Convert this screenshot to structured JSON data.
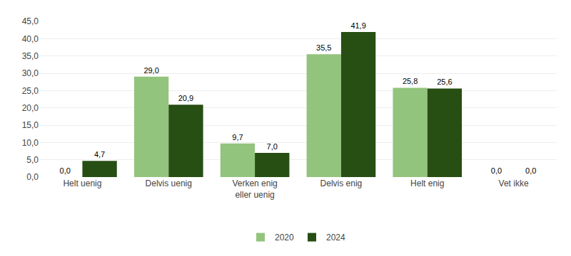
{
  "chart_data": {
    "type": "bar",
    "categories": [
      "Helt uenig",
      "Delvis uenig",
      "Verken enig\neller uenig",
      "Delvis enig",
      "Helt enig",
      "Vet ikke"
    ],
    "series": [
      {
        "name": "2020",
        "color": "#93c47d",
        "values": [
          0.0,
          29.0,
          9.7,
          35.5,
          25.8,
          0.0
        ],
        "value_labels": [
          "0,0",
          "29,0",
          "9,7",
          "35,5",
          "25,8",
          "0,0"
        ]
      },
      {
        "name": "2024",
        "color": "#274e13",
        "values": [
          4.7,
          20.9,
          7.0,
          41.9,
          25.6,
          0.0
        ],
        "value_labels": [
          "4,7",
          "20,9",
          "7,0",
          "41,9",
          "25,6",
          "0,0"
        ]
      }
    ],
    "ylim": [
      0,
      45
    ],
    "yticks": [
      {
        "value": 0,
        "label": "0,0"
      },
      {
        "value": 5,
        "label": "5,0"
      },
      {
        "value": 10,
        "label": "10,0"
      },
      {
        "value": 15,
        "label": "15,0"
      },
      {
        "value": 20,
        "label": "20,0"
      },
      {
        "value": 25,
        "label": "25,0"
      },
      {
        "value": 30,
        "label": "30,0"
      },
      {
        "value": 35,
        "label": "35,0"
      },
      {
        "value": 40,
        "label": "40,0"
      },
      {
        "value": 45,
        "label": "45,0"
      }
    ],
    "grid": true,
    "data_labels": true,
    "legend": "bottom"
  }
}
